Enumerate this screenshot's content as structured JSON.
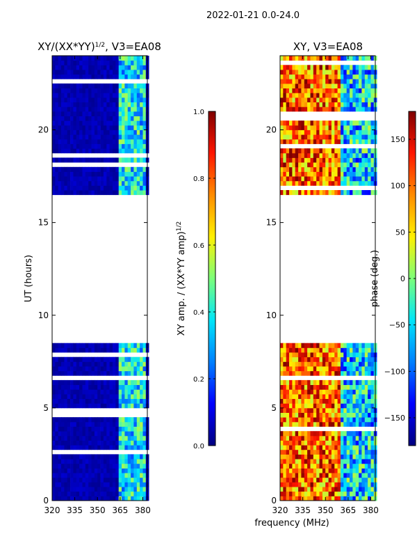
{
  "figure_title": "2022-01-21 0.0-24.0",
  "x_axis_label": "frequency (MHz)",
  "colormap": [
    "#00007f",
    "#0000ff",
    "#0080ff",
    "#00e5f8",
    "#7cff7a",
    "#fff000",
    "#ff8c00",
    "#ff1500",
    "#7f0000"
  ],
  "chart_data": [
    {
      "type": "heatmap",
      "title_prefix": "XY/(XX*YY)",
      "title_exponent": "1/2",
      "title_suffix": ", V3=EA08",
      "xlabel": "",
      "ylabel": "UT (hours)",
      "xlim": [
        320,
        383
      ],
      "ylim": [
        0,
        24
      ],
      "xticks": [
        "320",
        "335",
        "350",
        "365",
        "380"
      ],
      "xtick_values": [
        320,
        335,
        350,
        365,
        380
      ],
      "yticks": [
        "0",
        "5",
        "10",
        "15",
        "20"
      ],
      "ytick_values": [
        0,
        5,
        10,
        15,
        20
      ],
      "data_gap_hours": [
        8.5,
        16.5
      ],
      "colorbar": {
        "label_prefix": "XY amp. / (XX*YY amp)",
        "label_exponent": "1/2",
        "range": [
          0.0,
          1.0
        ],
        "ticks": [
          "0.0",
          "0.2",
          "0.4",
          "0.6",
          "0.8",
          "1.0"
        ],
        "tick_values": [
          0.0,
          0.2,
          0.4,
          0.6,
          0.8,
          1.0
        ]
      }
    },
    {
      "type": "heatmap",
      "title_prefix": "XY, V3=EA08",
      "title_exponent": "",
      "title_suffix": "",
      "xlabel": "frequency (MHz)",
      "ylabel": "",
      "xlim": [
        320,
        383
      ],
      "ylim": [
        0,
        24
      ],
      "xticks": [
        "320",
        "335",
        "350",
        "365",
        "380"
      ],
      "xtick_values": [
        320,
        335,
        350,
        365,
        380
      ],
      "yticks": [
        "0",
        "5",
        "10",
        "15",
        "20"
      ],
      "ytick_values": [
        0,
        5,
        10,
        15,
        20
      ],
      "data_gap_hours": [
        8.5,
        16.5
      ],
      "colorbar": {
        "label_prefix": "phase (deg.)",
        "label_exponent": "",
        "range": [
          -180,
          180
        ],
        "ticks": [
          "−150",
          "−100",
          "−50",
          "0",
          "50",
          "100",
          "150"
        ],
        "tick_values": [
          -150,
          -100,
          -50,
          0,
          50,
          100,
          150
        ]
      }
    }
  ]
}
